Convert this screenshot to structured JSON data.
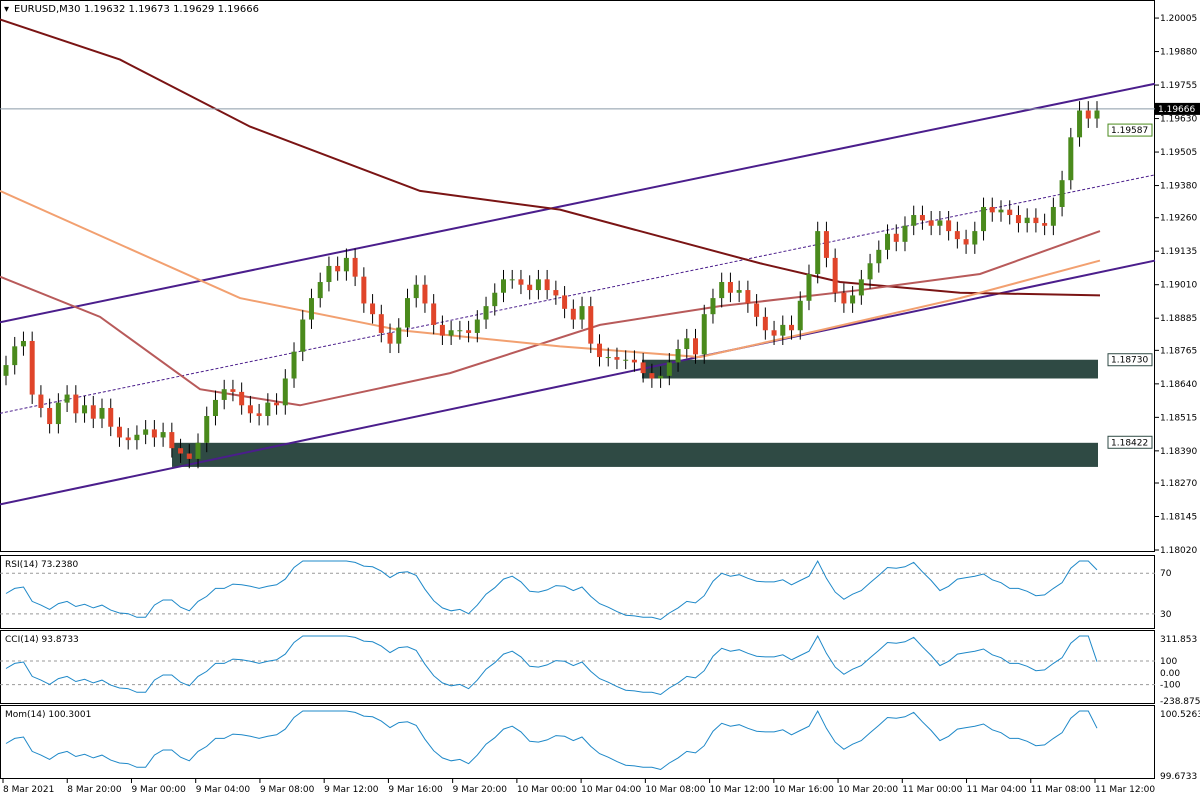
{
  "header": {
    "symbol": "EURUSD,M30",
    "ohlc": "1.19632 1.19673 1.19629 1.19666"
  },
  "colors": {
    "bull": "#4a8a1c",
    "bear": "#e0452a",
    "ma_slow": "#7a1414",
    "ma_mid": "#b85a5a",
    "ma_fast": "#f2a070",
    "channel": "#4b1e8c",
    "zone": "#2f4a44",
    "osc": "#1e88c8",
    "current_price_box": "#000000"
  },
  "chart_data": {
    "type": "candlestick",
    "symbol": "EURUSD",
    "timeframe": "M30",
    "price_axis": {
      "range": [
        1.1802,
        1.2005
      ],
      "ticks": [
        "1.20005",
        "1.19880",
        "1.19755",
        "1.19630",
        "1.19505",
        "1.19380",
        "1.19260",
        "1.19135",
        "1.19010",
        "1.18885",
        "1.18765",
        "1.18640",
        "1.18515",
        "1.18390",
        "1.18270",
        "1.18145",
        "1.18020"
      ]
    },
    "time_labels": [
      "8 Mar 2021",
      "8 Mar 20:00",
      "9 Mar 00:00",
      "9 Mar 04:00",
      "9 Mar 08:00",
      "9 Mar 12:00",
      "9 Mar 16:00",
      "9 Mar 20:00",
      "10 Mar 00:00",
      "10 Mar 04:00",
      "10 Mar 08:00",
      "10 Mar 12:00",
      "10 Mar 16:00",
      "10 Mar 20:00",
      "11 Mar 00:00",
      "11 Mar 04:00",
      "11 Mar 08:00",
      "11 Mar 12:00"
    ],
    "current_price": "1.19666",
    "price_labels": [
      {
        "value": "1.19587"
      },
      {
        "value": "1.18730"
      },
      {
        "value": "1.18422"
      }
    ],
    "zones": [
      {
        "top": 1.1873,
        "bottom": 1.1866
      },
      {
        "top": 1.1842,
        "bottom": 1.1833
      }
    ],
    "candles_close": [
      1.1871,
      1.1878,
      1.188,
      1.186,
      1.1855,
      1.1849,
      1.1857,
      1.186,
      1.1853,
      1.1856,
      1.1851,
      1.1855,
      1.1848,
      1.1844,
      1.1843,
      1.1845,
      1.1847,
      1.1844,
      1.1846,
      1.184,
      1.1838,
      1.1836,
      1.1842,
      1.1852,
      1.1858,
      1.1862,
      1.1861,
      1.1856,
      1.1853,
      1.1852,
      1.1857,
      1.1856,
      1.1866,
      1.1876,
      1.1888,
      1.1896,
      1.1902,
      1.1908,
      1.1906,
      1.1911,
      1.1904,
      1.1894,
      1.189,
      1.1883,
      1.1879,
      1.1885,
      1.1896,
      1.1901,
      1.1894,
      1.1886,
      1.1882,
      1.1884,
      1.1884,
      1.1883,
      1.1888,
      1.1893,
      1.1898,
      1.1903,
      1.1903,
      1.1901,
      1.1899,
      1.1903,
      1.1899,
      1.1897,
      1.1892,
      1.1888,
      1.1893,
      1.1879,
      1.1874,
      1.1874,
      1.1873,
      1.1873,
      1.1872,
      1.1868,
      1.1866,
      1.1867,
      1.1872,
      1.1877,
      1.1881,
      1.1875,
      1.189,
      1.1896,
      1.1902,
      1.1898,
      1.1899,
      1.1894,
      1.1889,
      1.1884,
      1.1882,
      1.1886,
      1.1884,
      1.1895,
      1.1905,
      1.1921,
      1.1911,
      1.1898,
      1.1894,
      1.1897,
      1.1903,
      1.1909,
      1.1914,
      1.192,
      1.1917,
      1.1923,
      1.1927,
      1.1925,
      1.1923,
      1.1925,
      1.1921,
      1.1918,
      1.1916,
      1.1921,
      1.193,
      1.1928,
      1.1929,
      1.1927,
      1.1924,
      1.1926,
      1.1924,
      1.1923,
      1.193,
      1.194,
      1.1956,
      1.1966,
      1.1963,
      1.1966
    ],
    "ma_slow": [
      [
        0,
        1.2
      ],
      [
        120,
        1.1985
      ],
      [
        250,
        1.196
      ],
      [
        420,
        1.1936
      ],
      [
        560,
        1.1929
      ],
      [
        680,
        1.1917
      ],
      [
        760,
        1.1909
      ],
      [
        840,
        1.1902
      ],
      [
        960,
        1.1898
      ],
      [
        1100,
        1.1897
      ]
    ],
    "ma_mid": [
      [
        0,
        1.1904
      ],
      [
        100,
        1.1889
      ],
      [
        200,
        1.1862
      ],
      [
        300,
        1.1856
      ],
      [
        450,
        1.1868
      ],
      [
        600,
        1.1886
      ],
      [
        720,
        1.1893
      ],
      [
        860,
        1.1899
      ],
      [
        980,
        1.1905
      ],
      [
        1100,
        1.1921
      ]
    ],
    "ma_fast": [
      [
        0,
        1.1936
      ],
      [
        120,
        1.1916
      ],
      [
        240,
        1.1896
      ],
      [
        400,
        1.1884
      ],
      [
        560,
        1.1878
      ],
      [
        700,
        1.1874
      ],
      [
        820,
        1.1884
      ],
      [
        960,
        1.1896
      ],
      [
        1100,
        1.191
      ]
    ],
    "channel_upper": [
      [
        0,
        1.1887
      ],
      [
        1155,
        1.1976
      ]
    ],
    "channel_lower": [
      [
        0,
        1.1819
      ],
      [
        1155,
        1.191
      ]
    ],
    "channel_mid": [
      [
        0,
        1.1853
      ],
      [
        1155,
        1.1942
      ]
    ]
  },
  "indicators": [
    {
      "name": "RSI(14) 73.2380",
      "ticks": [
        "70",
        "30"
      ],
      "levels": [
        70,
        30
      ],
      "range": [
        18,
        82
      ],
      "current": 73.238
    },
    {
      "name": "CCI(14) 93.8733",
      "ticks": [
        "311.853",
        "100",
        "0.00",
        "-100",
        "-238.8755"
      ],
      "levels": [
        100,
        -100
      ],
      "range": [
        -238.8755,
        311.853
      ],
      "current": 93.8733
    },
    {
      "name": "Mom(14) 100.3001",
      "ticks": [
        "100.5263",
        "99.6733"
      ],
      "levels": [],
      "range": [
        99.6733,
        100.5263
      ],
      "current": 100.3001
    }
  ]
}
